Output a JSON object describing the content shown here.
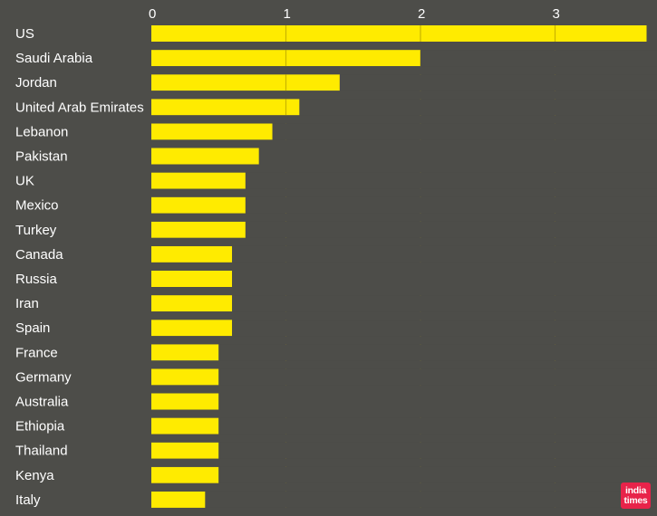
{
  "chart_data": {
    "type": "bar",
    "orientation": "horizontal",
    "categories": [
      "US",
      "Saudi Arabia",
      "Jordan",
      "United Arab Emirates",
      "Lebanon",
      "Pakistan",
      "UK",
      "Mexico",
      "Turkey",
      "Canada",
      "Russia",
      "Iran",
      "Spain",
      "France",
      "Germany",
      "Australia",
      "Ethiopia",
      "Thailand",
      "Kenya",
      "Italy"
    ],
    "values": [
      3.68,
      2.0,
      1.4,
      1.1,
      0.9,
      0.8,
      0.7,
      0.7,
      0.7,
      0.6,
      0.6,
      0.6,
      0.6,
      0.5,
      0.5,
      0.5,
      0.5,
      0.5,
      0.5,
      0.4
    ],
    "xticks": [
      0,
      1,
      2,
      3
    ],
    "xlim": [
      0,
      3.68
    ],
    "title": "",
    "xlabel": "",
    "ylabel": "",
    "grid": "vertical",
    "colors": {
      "background": "#4d4d49",
      "bar": "#ffeb00",
      "grid": "#c9b400",
      "text": "#ffffff"
    }
  },
  "logo": {
    "text_line1": "india",
    "text_line2": "times",
    "color": "#e8234a"
  }
}
